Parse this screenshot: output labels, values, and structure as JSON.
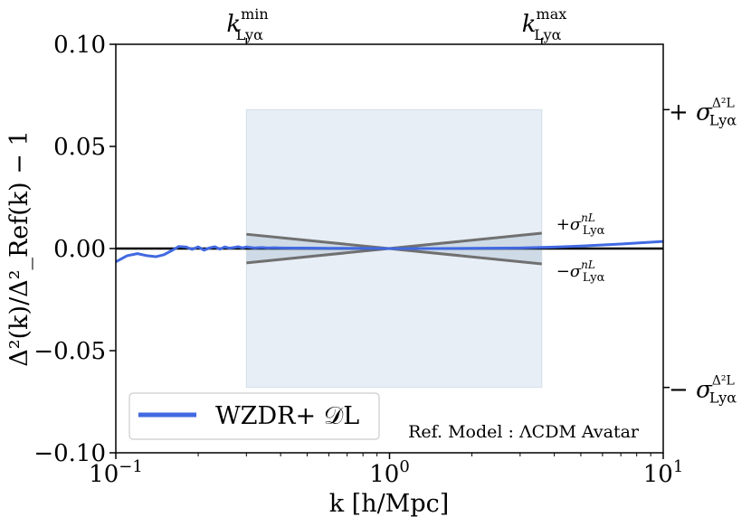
{
  "chart_data": {
    "type": "line",
    "title": "",
    "xlabel": "k [h/Mpc]",
    "ylabel": "Δ²(k)/Δ²_Ref(k) − 1",
    "x_scale": "log",
    "xlim": [
      0.1,
      10
    ],
    "ylim": [
      -0.1,
      0.1
    ],
    "x_ticks": [
      {
        "value": 0.1,
        "base": "10",
        "exp": "−1"
      },
      {
        "value": 1,
        "base": "10",
        "exp": "0"
      },
      {
        "value": 10,
        "base": "10",
        "exp": "1"
      }
    ],
    "y_ticks": [
      {
        "value": -0.1,
        "label": "−0.10"
      },
      {
        "value": -0.05,
        "label": "−0.05"
      },
      {
        "value": 0.0,
        "label": "0.00"
      },
      {
        "value": 0.05,
        "label": "0.05"
      },
      {
        "value": 0.1,
        "label": "0.10"
      }
    ],
    "top_ticks": [
      {
        "value": 0.3,
        "base": "k",
        "sup": "min",
        "sub": "Lyα"
      },
      {
        "value": 3.6,
        "base": "k",
        "sup": "max",
        "sub": "Lyα"
      }
    ],
    "right_ticks": [
      {
        "value": 0.068,
        "prefix": "+ ",
        "base": "σ",
        "sup": "Δ²L",
        "sub": "Lyα"
      },
      {
        "value": -0.068,
        "prefix": "− ",
        "base": "σ",
        "sup": "Δ²L",
        "sub": "Lyα"
      }
    ],
    "band": {
      "x": [
        0.3,
        3.6
      ],
      "y": [
        -0.068,
        0.068
      ],
      "color": "#e8eef5"
    },
    "slope_lines": {
      "pivot": 1.0,
      "x": [
        0.3,
        3.6
      ],
      "upper_at_left": 0.007,
      "upper_at_right": 0.0075,
      "color": "#707070",
      "fill": "#c9d6e3",
      "labels": [
        {
          "sign": "+",
          "base": "σ",
          "sup": "nL",
          "sub": "Lyα"
        },
        {
          "sign": "−",
          "base": "σ",
          "sup": "nL",
          "sub": "Lyα"
        }
      ]
    },
    "series": [
      {
        "name": "WZDR+ 𝒟L",
        "color": "#4169e1",
        "x": [
          0.1,
          0.11,
          0.12,
          0.13,
          0.14,
          0.15,
          0.16,
          0.17,
          0.18,
          0.19,
          0.2,
          0.21,
          0.22,
          0.23,
          0.24,
          0.25,
          0.26,
          0.27,
          0.28,
          0.29,
          0.3,
          0.32,
          0.34,
          0.36,
          0.38,
          0.4,
          0.45,
          0.5,
          0.6,
          0.7,
          0.8,
          1.0,
          1.5,
          2.0,
          3.0,
          4.0,
          5.0,
          7.0,
          10.0
        ],
        "values": [
          -0.0065,
          -0.0035,
          -0.0025,
          -0.0035,
          -0.004,
          -0.003,
          -0.001,
          0.001,
          0.0008,
          -0.0004,
          0.0008,
          -0.0008,
          0.0003,
          0.0009,
          -0.0003,
          0.0008,
          0.0002,
          0.0005,
          0.0009,
          0.0003,
          0.0008,
          0.0003,
          0.0005,
          0.0003,
          0.0004,
          0.0003,
          0.0002,
          0.0002,
          0.0001,
          0.0001,
          0.0001,
          0.0,
          0.0,
          0.0001,
          0.0003,
          0.0007,
          0.0012,
          0.0022,
          0.0035
        ]
      }
    ],
    "zero_line": {
      "value": 0.0,
      "color": "#000000"
    },
    "legend": {
      "placement": "lower-left"
    },
    "annotation": "Ref. Model : ΛCDM  Avatar",
    "grid": false
  }
}
